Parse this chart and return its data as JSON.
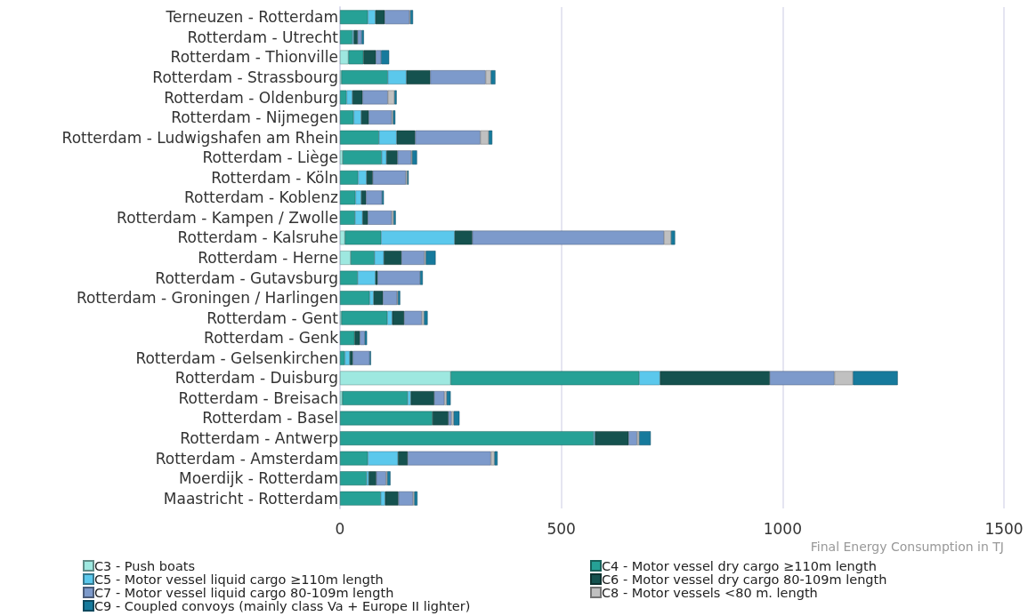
{
  "chart_data": {
    "type": "bar",
    "orientation": "horizontal",
    "stacked": true,
    "categories": [
      "Terneuzen - Rotterdam",
      "Rotterdam - Utrecht",
      "Rotterdam - Thionville",
      "Rotterdam - Strassbourg",
      "Rotterdam - Oldenburg",
      "Rotterdam - Nijmegen",
      "Rotterdam - Ludwigshafen am Rhein",
      "Rotterdam - Liège",
      "Rotterdam - Köln",
      "Rotterdam - Koblenz",
      "Rotterdam - Kampen / Zwolle",
      "Rotterdam - Kalsruhe",
      "Rotterdam - Herne",
      "Rotterdam - Gutavsburg",
      "Rotterdam - Groningen / Harlingen",
      "Rotterdam - Gent",
      "Rotterdam - Genk",
      "Rotterdam - Gelsenkirchen",
      "Rotterdam - Duisburg",
      "Rotterdam - Breisach",
      "Rotterdam - Basel",
      "Rotterdam - Antwerp",
      "Rotterdam - Amsterdam",
      "Moerdijk - Rotterdam",
      "Maastricht - Rotterdam"
    ],
    "series": [
      {
        "name": "C3 - Push boats",
        "color": "#9ee8e0",
        "values": [
          null,
          null,
          19,
          3,
          null,
          null,
          null,
          6,
          null,
          null,
          null,
          11,
          24,
          null,
          null,
          3,
          null,
          null,
          250,
          5,
          null,
          null,
          null,
          null,
          null
        ]
      },
      {
        "name": "C4 - Motor vessel dry cargo ≥110m length",
        "color": "#26a196",
        "values": [
          63,
          28,
          34,
          105,
          15,
          31,
          88,
          88,
          41,
          35,
          34,
          82,
          54,
          40,
          67,
          104,
          33,
          11,
          426,
          148,
          209,
          573,
          63,
          60,
          92
        ]
      },
      {
        "name": "C5 - Motor vessel liquid cargo ≥110m length",
        "color": "#5bc8ec",
        "values": [
          17,
          3,
          null,
          42,
          13,
          17,
          40,
          11,
          19,
          13,
          17,
          166,
          21,
          40,
          9,
          11,
          null,
          11,
          47,
          7,
          null,
          3,
          68,
          5,
          10
        ]
      },
      {
        "name": "C6 - Motor vessel dry cargo 80-109m length",
        "color": "#15524f",
        "values": [
          21,
          9,
          28,
          54,
          23,
          17,
          42,
          25,
          14,
          11,
          12,
          40,
          40,
          5,
          21,
          27,
          12,
          7,
          248,
          53,
          36,
          76,
          22,
          17,
          30
        ]
      },
      {
        "name": "C7 - Motor vessel liquid cargo 80-109m length",
        "color": "#7d9acb",
        "values": [
          56,
          9,
          12,
          125,
          57,
          52,
          147,
          31,
          75,
          36,
          54,
          433,
          52,
          96,
          32,
          40,
          11,
          38,
          146,
          23,
          7,
          19,
          188,
          22,
          33
        ]
      },
      {
        "name": "C8 - Motor vessels <80 m. length",
        "color": "#c0c0c0",
        "values": [
          2,
          null,
          null,
          12,
          15,
          3,
          19,
          2,
          3,
          null,
          4,
          16,
          3,
          null,
          2,
          5,
          null,
          null,
          42,
          5,
          5,
          5,
          8,
          3,
          3
        ]
      },
      {
        "name": "C9 - Coupled convoys (mainly class Va + Europe II lighter)",
        "color": "#167a9c",
        "values": [
          6,
          5,
          18,
          10,
          5,
          5,
          8,
          11,
          3,
          4,
          5,
          9,
          22,
          6,
          5,
          8,
          5,
          3,
          101,
          9,
          13,
          26,
          7,
          7,
          7
        ]
      }
    ],
    "xlabel": "Final Energy Consumption in TJ",
    "xlim": [
      0,
      1500
    ],
    "xticks": [
      0,
      500,
      1000,
      1500
    ],
    "grid": "x",
    "legend": "bottom left",
    "marker": "square"
  }
}
